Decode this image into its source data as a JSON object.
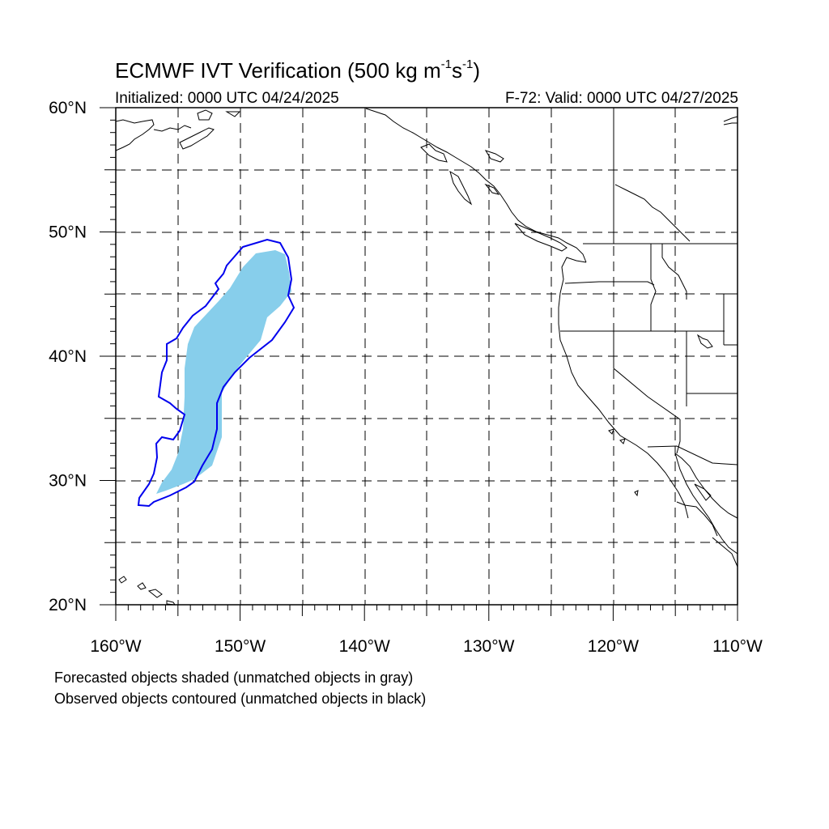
{
  "header": {
    "title_main": "ECMWF IVT Verification (500 kg m",
    "title_exp1": "-1",
    "title_mid": "s",
    "title_exp2": "-1",
    "title_end": ")",
    "initialized": "Initialized: 0000 UTC 04/24/2025",
    "valid": "F-72: Valid: 0000 UTC 04/27/2025"
  },
  "map": {
    "lat_range": [
      20,
      60
    ],
    "lon_range": [
      -160,
      -110
    ],
    "gridlines": "dashed",
    "lat_labels": [
      "20°N",
      "30°N",
      "40°N",
      "50°N",
      "60°N"
    ],
    "lon_labels": [
      "160°W",
      "150°W",
      "140°W",
      "130°W",
      "120°W",
      "110°W"
    ],
    "forecast_object_color": "#87ceeb",
    "observed_contour_color": "#0000ee"
  },
  "legend": {
    "line1": "Forecasted objects shaded (unmatched objects in gray)",
    "line2": "Observed objects contoured (unmatched objects in black)"
  }
}
